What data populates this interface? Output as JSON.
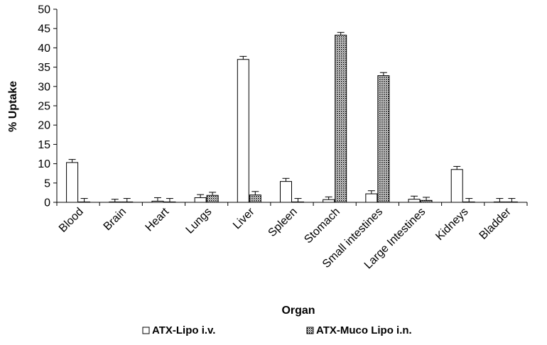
{
  "chart_data": {
    "type": "bar",
    "title": "",
    "xlabel": "Organ",
    "ylabel": "% Uptake",
    "ylim": [
      0,
      50
    ],
    "yticks": [
      0,
      5,
      10,
      15,
      20,
      25,
      30,
      35,
      40,
      45,
      50
    ],
    "grid": false,
    "legend_position": "bottom",
    "categories": [
      "Blood",
      "Brain",
      "Heart",
      "Lungs",
      "Liver",
      "Spleen",
      "Stomach",
      "Small intestines",
      "Large Intestines",
      "Kidneys",
      "Bladder"
    ],
    "series": [
      {
        "name": "ATX-Lipo i.v.",
        "pattern": "none",
        "fill": "#ffffff",
        "values": [
          10.3,
          0.1,
          0.3,
          1.2,
          37.0,
          5.4,
          0.7,
          2.2,
          0.8,
          8.5,
          0.1
        ],
        "errors": [
          0.8,
          0.7,
          0.9,
          0.8,
          0.8,
          0.8,
          0.7,
          0.8,
          0.8,
          0.8,
          0.9
        ]
      },
      {
        "name": "ATX-Muco Lipo i.n.",
        "pattern": "dots",
        "fill": "#ffffff",
        "values": [
          0.1,
          0.1,
          0.1,
          1.8,
          1.9,
          0.1,
          43.3,
          32.8,
          0.5,
          0.1,
          0.1
        ],
        "errors": [
          0.9,
          0.9,
          0.9,
          0.8,
          0.9,
          0.9,
          0.7,
          0.8,
          0.8,
          0.9,
          0.9
        ]
      }
    ]
  }
}
